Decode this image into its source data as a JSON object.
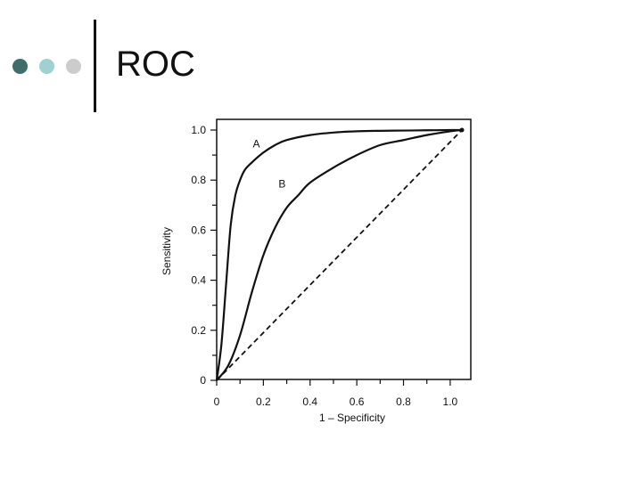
{
  "slide": {
    "title": "ROC",
    "bullet_dots": [
      {
        "name": "dot-dark-teal",
        "color": "#3f6e6a"
      },
      {
        "name": "dot-light-teal",
        "color": "#9fd0d2"
      },
      {
        "name": "dot-light-gray",
        "color": "#cccccc"
      }
    ]
  },
  "chart_data": {
    "type": "line",
    "title": "",
    "xlabel": "1 – Specificity",
    "ylabel": "Sensitivity",
    "xlim": [
      0,
      1.05
    ],
    "ylim": [
      0,
      1.0
    ],
    "xticks": [
      "0",
      "0.2",
      "0.4",
      "0.6",
      "0.8",
      "1.0"
    ],
    "yticks": [
      "0",
      "0.2",
      "0.4",
      "0.6",
      "0.8",
      "1.0"
    ],
    "grid": false,
    "series": [
      {
        "name": "A",
        "style": "solid",
        "x": [
          0,
          0.02,
          0.04,
          0.06,
          0.08,
          0.1,
          0.12,
          0.15,
          0.2,
          0.25,
          0.3,
          0.4,
          0.5,
          0.6,
          0.7,
          0.8,
          0.9,
          1.0,
          1.05
        ],
        "y": [
          0,
          0.14,
          0.38,
          0.62,
          0.74,
          0.8,
          0.84,
          0.87,
          0.91,
          0.94,
          0.96,
          0.98,
          0.99,
          0.995,
          0.997,
          0.998,
          0.999,
          1.0,
          1.0
        ]
      },
      {
        "name": "B",
        "style": "solid",
        "x": [
          0,
          0.05,
          0.1,
          0.15,
          0.2,
          0.25,
          0.3,
          0.35,
          0.4,
          0.5,
          0.6,
          0.7,
          0.8,
          0.9,
          1.0,
          1.05
        ],
        "y": [
          0,
          0.06,
          0.18,
          0.35,
          0.5,
          0.61,
          0.69,
          0.74,
          0.79,
          0.85,
          0.9,
          0.94,
          0.96,
          0.98,
          0.995,
          1.0
        ]
      },
      {
        "name": "",
        "style": "dashed",
        "x": [
          0,
          1.05
        ],
        "y": [
          0,
          1.0
        ]
      }
    ],
    "annotations": [
      {
        "text": "A",
        "x": 0.17,
        "y": 0.93
      },
      {
        "text": "B",
        "x": 0.28,
        "y": 0.77
      }
    ]
  }
}
